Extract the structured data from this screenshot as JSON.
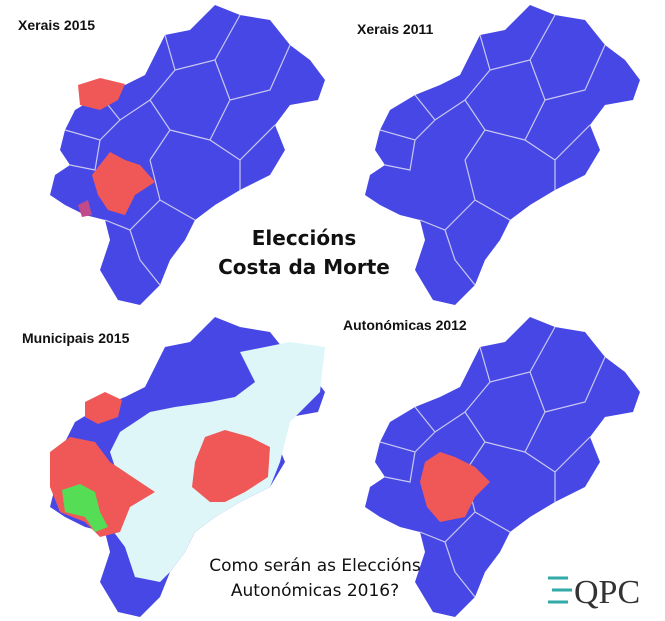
{
  "maps": [
    {
      "title": "Xerais 2015"
    },
    {
      "title": "Xerais 2011"
    },
    {
      "title": "Municipais 2015"
    },
    {
      "title": "Autonómicas 2012"
    }
  ],
  "center_title": [
    "Eleccións",
    "Costa da Morte"
  ],
  "question": [
    "Como serán as Eleccións",
    "Autonómicas 2016?"
  ],
  "logo": "QPC"
}
